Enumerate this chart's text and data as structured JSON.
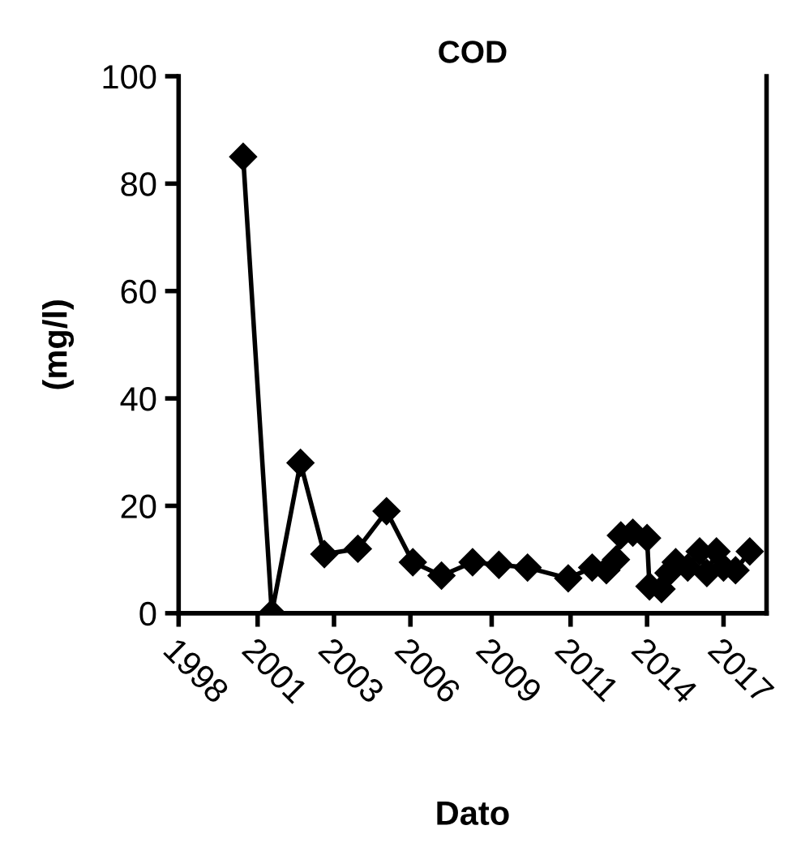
{
  "chart_data": {
    "type": "line",
    "title": "COD",
    "xlabel": "Dato",
    "ylabel": "(mg/l)",
    "series": [
      {
        "color": "#000000",
        "x": [
          "2000-07",
          "2001-07",
          "2002-07",
          "2003-05",
          "2004-07",
          "2005-07",
          "2006-06",
          "2007-06",
          "2008-07",
          "2009-06",
          "2010-06",
          "2011-11",
          "2012-09",
          "2013-03",
          "2013-07",
          "2013-09",
          "2014-02",
          "2014-08",
          "2014-09",
          "2015-02",
          "2015-05",
          "2015-08",
          "2016-01",
          "2016-06",
          "2016-09",
          "2017-01",
          "2017-04",
          "2017-09",
          "2018-03"
        ],
        "values": [
          85,
          0,
          28,
          11,
          12,
          19,
          9.5,
          7,
          9.5,
          9,
          8.5,
          6.5,
          8.5,
          8,
          10,
          14.5,
          15,
          14,
          5,
          4.5,
          7.5,
          9.5,
          8.5,
          11.5,
          7.5,
          11.5,
          8.5,
          8,
          11.5
        ]
      }
    ],
    "xlim": [
      "1998-04",
      "2018-10"
    ],
    "xticks": [
      {
        "value": "1998-04",
        "label": "1998"
      },
      {
        "value": "2001-01",
        "label": "2001"
      },
      {
        "value": "2003-09",
        "label": "2003"
      },
      {
        "value": "2006-05",
        "label": "2006"
      },
      {
        "value": "2009-03",
        "label": "2009"
      },
      {
        "value": "2011-12",
        "label": "2011"
      },
      {
        "value": "2014-08",
        "label": "2014"
      },
      {
        "value": "2017-04",
        "label": "2017"
      }
    ],
    "ylim": [
      0,
      100
    ],
    "yticks": [
      0,
      20,
      40,
      60,
      80,
      100
    ],
    "grid": false,
    "legend": false,
    "marker": "diamond",
    "line_style": "solid"
  }
}
